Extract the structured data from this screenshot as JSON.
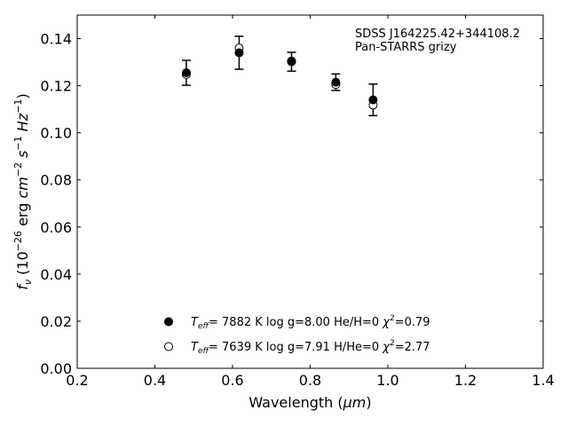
{
  "chart_data": {
    "type": "scatter",
    "title": "",
    "annotation": {
      "line1": "SDSS J164225.42+344108.2",
      "line2": "Pan-STARRS grizy"
    },
    "xlabel": {
      "text": "Wavelength (",
      "unit": "μm",
      "suffix": ")"
    },
    "ylabel": {
      "f": "f",
      "nu": "ν",
      "open": " (10",
      "e26": "−26",
      "erg": " erg ",
      "cm": "cm",
      "e2": "−2",
      "s": " s",
      "e1a": "−1",
      "hz": " Hz",
      "e1b": "−1",
      "close": ")"
    },
    "xlim": [
      0.2,
      1.4
    ],
    "ylim": [
      0.0,
      0.15
    ],
    "xticks": [
      "0.2",
      "0.4",
      "0.6",
      "0.8",
      "1.0",
      "1.2",
      "1.4"
    ],
    "yticks": [
      "0.00",
      "0.02",
      "0.04",
      "0.06",
      "0.08",
      "0.10",
      "0.12",
      "0.14"
    ],
    "grid": false,
    "legend_position": "bottom-center",
    "series": [
      {
        "marker": "filled-circle",
        "legend": {
          "teff": "T",
          "sub": "eff",
          "eq": "=  7882 K  log g=8.00  He/H=0  ",
          "chi": "χ",
          "sup": "2",
          "chival": "=0.79"
        },
        "points": [
          {
            "x": 0.481,
            "y": 0.1255,
            "yerr": 0.0053
          },
          {
            "x": 0.617,
            "y": 0.134,
            "yerr": 0.007
          },
          {
            "x": 0.752,
            "y": 0.1302,
            "yerr": 0.004
          },
          {
            "x": 0.866,
            "y": 0.1215,
            "yerr": 0.0035
          },
          {
            "x": 0.962,
            "y": 0.114,
            "yerr": 0.0067
          }
        ]
      },
      {
        "marker": "open-circle",
        "legend": {
          "teff": "T",
          "sub": "eff",
          "eq": "=  7639 K  log g=7.91  H/He=0  ",
          "chi": "χ",
          "sup": "2",
          "chival": "=2.77"
        },
        "points": [
          {
            "x": 0.481,
            "y": 0.1248
          },
          {
            "x": 0.617,
            "y": 0.136
          },
          {
            "x": 0.752,
            "y": 0.1305
          },
          {
            "x": 0.866,
            "y": 0.1205
          },
          {
            "x": 0.962,
            "y": 0.1118
          }
        ]
      }
    ]
  }
}
